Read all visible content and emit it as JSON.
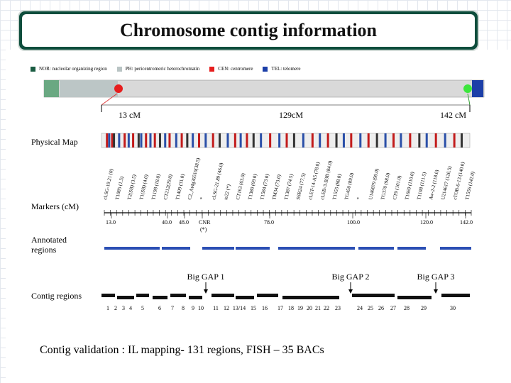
{
  "title": "Chromosome contig information",
  "legend": [
    {
      "label": "NOR: nucleolar organizing region",
      "color": "#1a5c42"
    },
    {
      "label": "PH: pericentromeric heterochromatin",
      "color": "#b9c4c4"
    },
    {
      "label": "CEN: centromere",
      "color": "#e61e1e"
    },
    {
      "label": "TEL: telomere",
      "color": "#1c3fa8"
    }
  ],
  "chromosome": {
    "nor_color": "#6aa882",
    "ph_color": "#bcc6c6",
    "body_color": "#d9d9d9",
    "cen_color": "#e61e1e",
    "tel_color": "#1c3fa8",
    "tel_dot_color": "#3ce63c"
  },
  "positions": {
    "left_label": "13 cM",
    "mid_label": "129cM",
    "right_label": "142 cM"
  },
  "sections": {
    "physical_map": "Physical Map",
    "markers": "Markers (cM)",
    "annotated": "Annotated regions",
    "contig": "Contig regions"
  },
  "marker_labels": [
    "cLSG-19.21 (0)",
    "T1085 (1.5)",
    "T2(SB) (3.5)",
    "T1(SB) (4.0)",
    "T1198 (18.0)",
    "CT212(29.0)",
    "T1409 (31.0)",
    "C2_At4g36510(38.5)",
    "*",
    "cLSG-21.89 (46.0)",
    "te22 (*)",
    "CT163 (63.0)",
    "T1380 (69.0)",
    "T1584 (73.0)",
    "TM34 (73.0)",
    "T1387 (74.5)",
    "SSR24 (77.5)",
    "cLET-14-A5 (78.0)",
    "cLEB-3-B3B (84.0)",
    "T1555 (88.0)",
    "TG450 (89.0)",
    "*",
    "U146879 (90.0)",
    "TG370 (98.0)",
    "CT9 (101.0)",
    "T1669 (110.0)",
    "T1108 (111.5)",
    "Aw-2-2 (118.0)",
    "U214617 (126.5)",
    "cTOB-6-13 (140.0)",
    "T1556 (142.0)"
  ],
  "scale_ticks": [
    "13.0",
    "40.0",
    "48.0",
    "CNR (*)",
    "78.0",
    "100.0",
    "120.0",
    "142.0"
  ],
  "gaps": [
    "Big GAP 1",
    "Big GAP 2",
    "Big GAP 3"
  ],
  "contig_numbers": [
    "1",
    "2",
    "3",
    "4",
    "5",
    "6",
    "7",
    "8",
    "9",
    "10",
    "11",
    "12",
    "13/14",
    "15",
    "16",
    "17",
    "18",
    "19",
    "20",
    "21",
    "22",
    "23",
    "24",
    "25",
    "26",
    "27",
    "28",
    "29",
    "30"
  ],
  "validation": "Contig validation : IL mapping- 131 regions,  FISH – 35 BACs"
}
